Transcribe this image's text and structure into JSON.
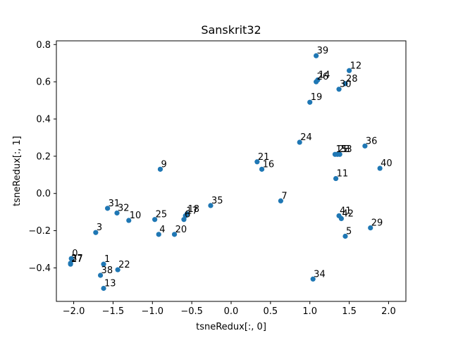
{
  "chart_data": {
    "type": "scatter",
    "title": "Sanskrit32",
    "xlabel": "tsneRedux[:, 0]",
    "ylabel": "tsneRedux[:, 1]",
    "xlim": [
      -2.22,
      2.22
    ],
    "ylim": [
      -0.58,
      0.82
    ],
    "xticks": [
      -2.0,
      -1.5,
      -1.0,
      -0.5,
      0.0,
      0.5,
      1.0,
      1.5,
      2.0
    ],
    "xtick_labels": [
      "−2.0",
      "−1.5",
      "−1.0",
      "−0.5",
      "0.0",
      "0.5",
      "1.0",
      "1.5",
      "2.0"
    ],
    "yticks": [
      -0.4,
      -0.2,
      0.0,
      0.2,
      0.4,
      0.6,
      0.8
    ],
    "ytick_labels": [
      "−0.4",
      "−0.2",
      "0.0",
      "0.2",
      "0.4",
      "0.6",
      "0.8"
    ],
    "marker_color": "#1f77b4",
    "points": [
      {
        "label": "0",
        "x": -2.03,
        "y": -0.35
      },
      {
        "label": "1",
        "x": -1.62,
        "y": -0.38
      },
      {
        "label": "3",
        "x": -1.72,
        "y": -0.21
      },
      {
        "label": "4",
        "x": -0.92,
        "y": -0.22
      },
      {
        "label": "5",
        "x": 1.45,
        "y": -0.23
      },
      {
        "label": "6",
        "x": -0.6,
        "y": -0.14
      },
      {
        "label": "7",
        "x": 0.63,
        "y": -0.04
      },
      {
        "label": "9",
        "x": -0.9,
        "y": 0.13
      },
      {
        "label": "10",
        "x": -1.3,
        "y": -0.145
      },
      {
        "label": "11",
        "x": 1.33,
        "y": 0.08
      },
      {
        "label": "12",
        "x": 1.5,
        "y": 0.66
      },
      {
        "label": "13",
        "x": -1.62,
        "y": -0.51
      },
      {
        "label": "14",
        "x": 1.1,
        "y": 0.61
      },
      {
        "label": "15",
        "x": 1.32,
        "y": 0.21
      },
      {
        "label": "16",
        "x": 0.39,
        "y": 0.13
      },
      {
        "label": "17",
        "x": -0.58,
        "y": -0.12
      },
      {
        "label": "18",
        "x": -0.56,
        "y": -0.11
      },
      {
        "label": "19",
        "x": 1.0,
        "y": 0.49
      },
      {
        "label": "20",
        "x": -0.72,
        "y": -0.22
      },
      {
        "label": "21",
        "x": 0.33,
        "y": 0.17
      },
      {
        "label": "22",
        "x": -1.44,
        "y": -0.41
      },
      {
        "label": "23",
        "x": 1.35,
        "y": 0.21
      },
      {
        "label": "24",
        "x": 0.87,
        "y": 0.275
      },
      {
        "label": "25",
        "x": -0.97,
        "y": -0.14
      },
      {
        "label": "26",
        "x": 1.08,
        "y": 0.6
      },
      {
        "label": "27",
        "x": -2.04,
        "y": -0.38
      },
      {
        "label": "28",
        "x": 1.45,
        "y": 0.59
      },
      {
        "label": "29",
        "x": 1.77,
        "y": -0.185
      },
      {
        "label": "30",
        "x": 1.37,
        "y": 0.56
      },
      {
        "label": "31",
        "x": -1.57,
        "y": -0.08
      },
      {
        "label": "32",
        "x": -1.45,
        "y": -0.105
      },
      {
        "label": "33",
        "x": 1.38,
        "y": 0.21
      },
      {
        "label": "34",
        "x": 1.04,
        "y": -0.46
      },
      {
        "label": "35",
        "x": -0.26,
        "y": -0.065
      },
      {
        "label": "36",
        "x": 1.7,
        "y": 0.255
      },
      {
        "label": "37",
        "x": -2.04,
        "y": -0.375
      },
      {
        "label": "38",
        "x": -1.66,
        "y": -0.44
      },
      {
        "label": "39",
        "x": 1.08,
        "y": 0.74
      },
      {
        "label": "40",
        "x": 1.89,
        "y": 0.135
      },
      {
        "label": "41",
        "x": 1.37,
        "y": -0.12
      },
      {
        "label": "42",
        "x": 1.4,
        "y": -0.135
      }
    ]
  }
}
